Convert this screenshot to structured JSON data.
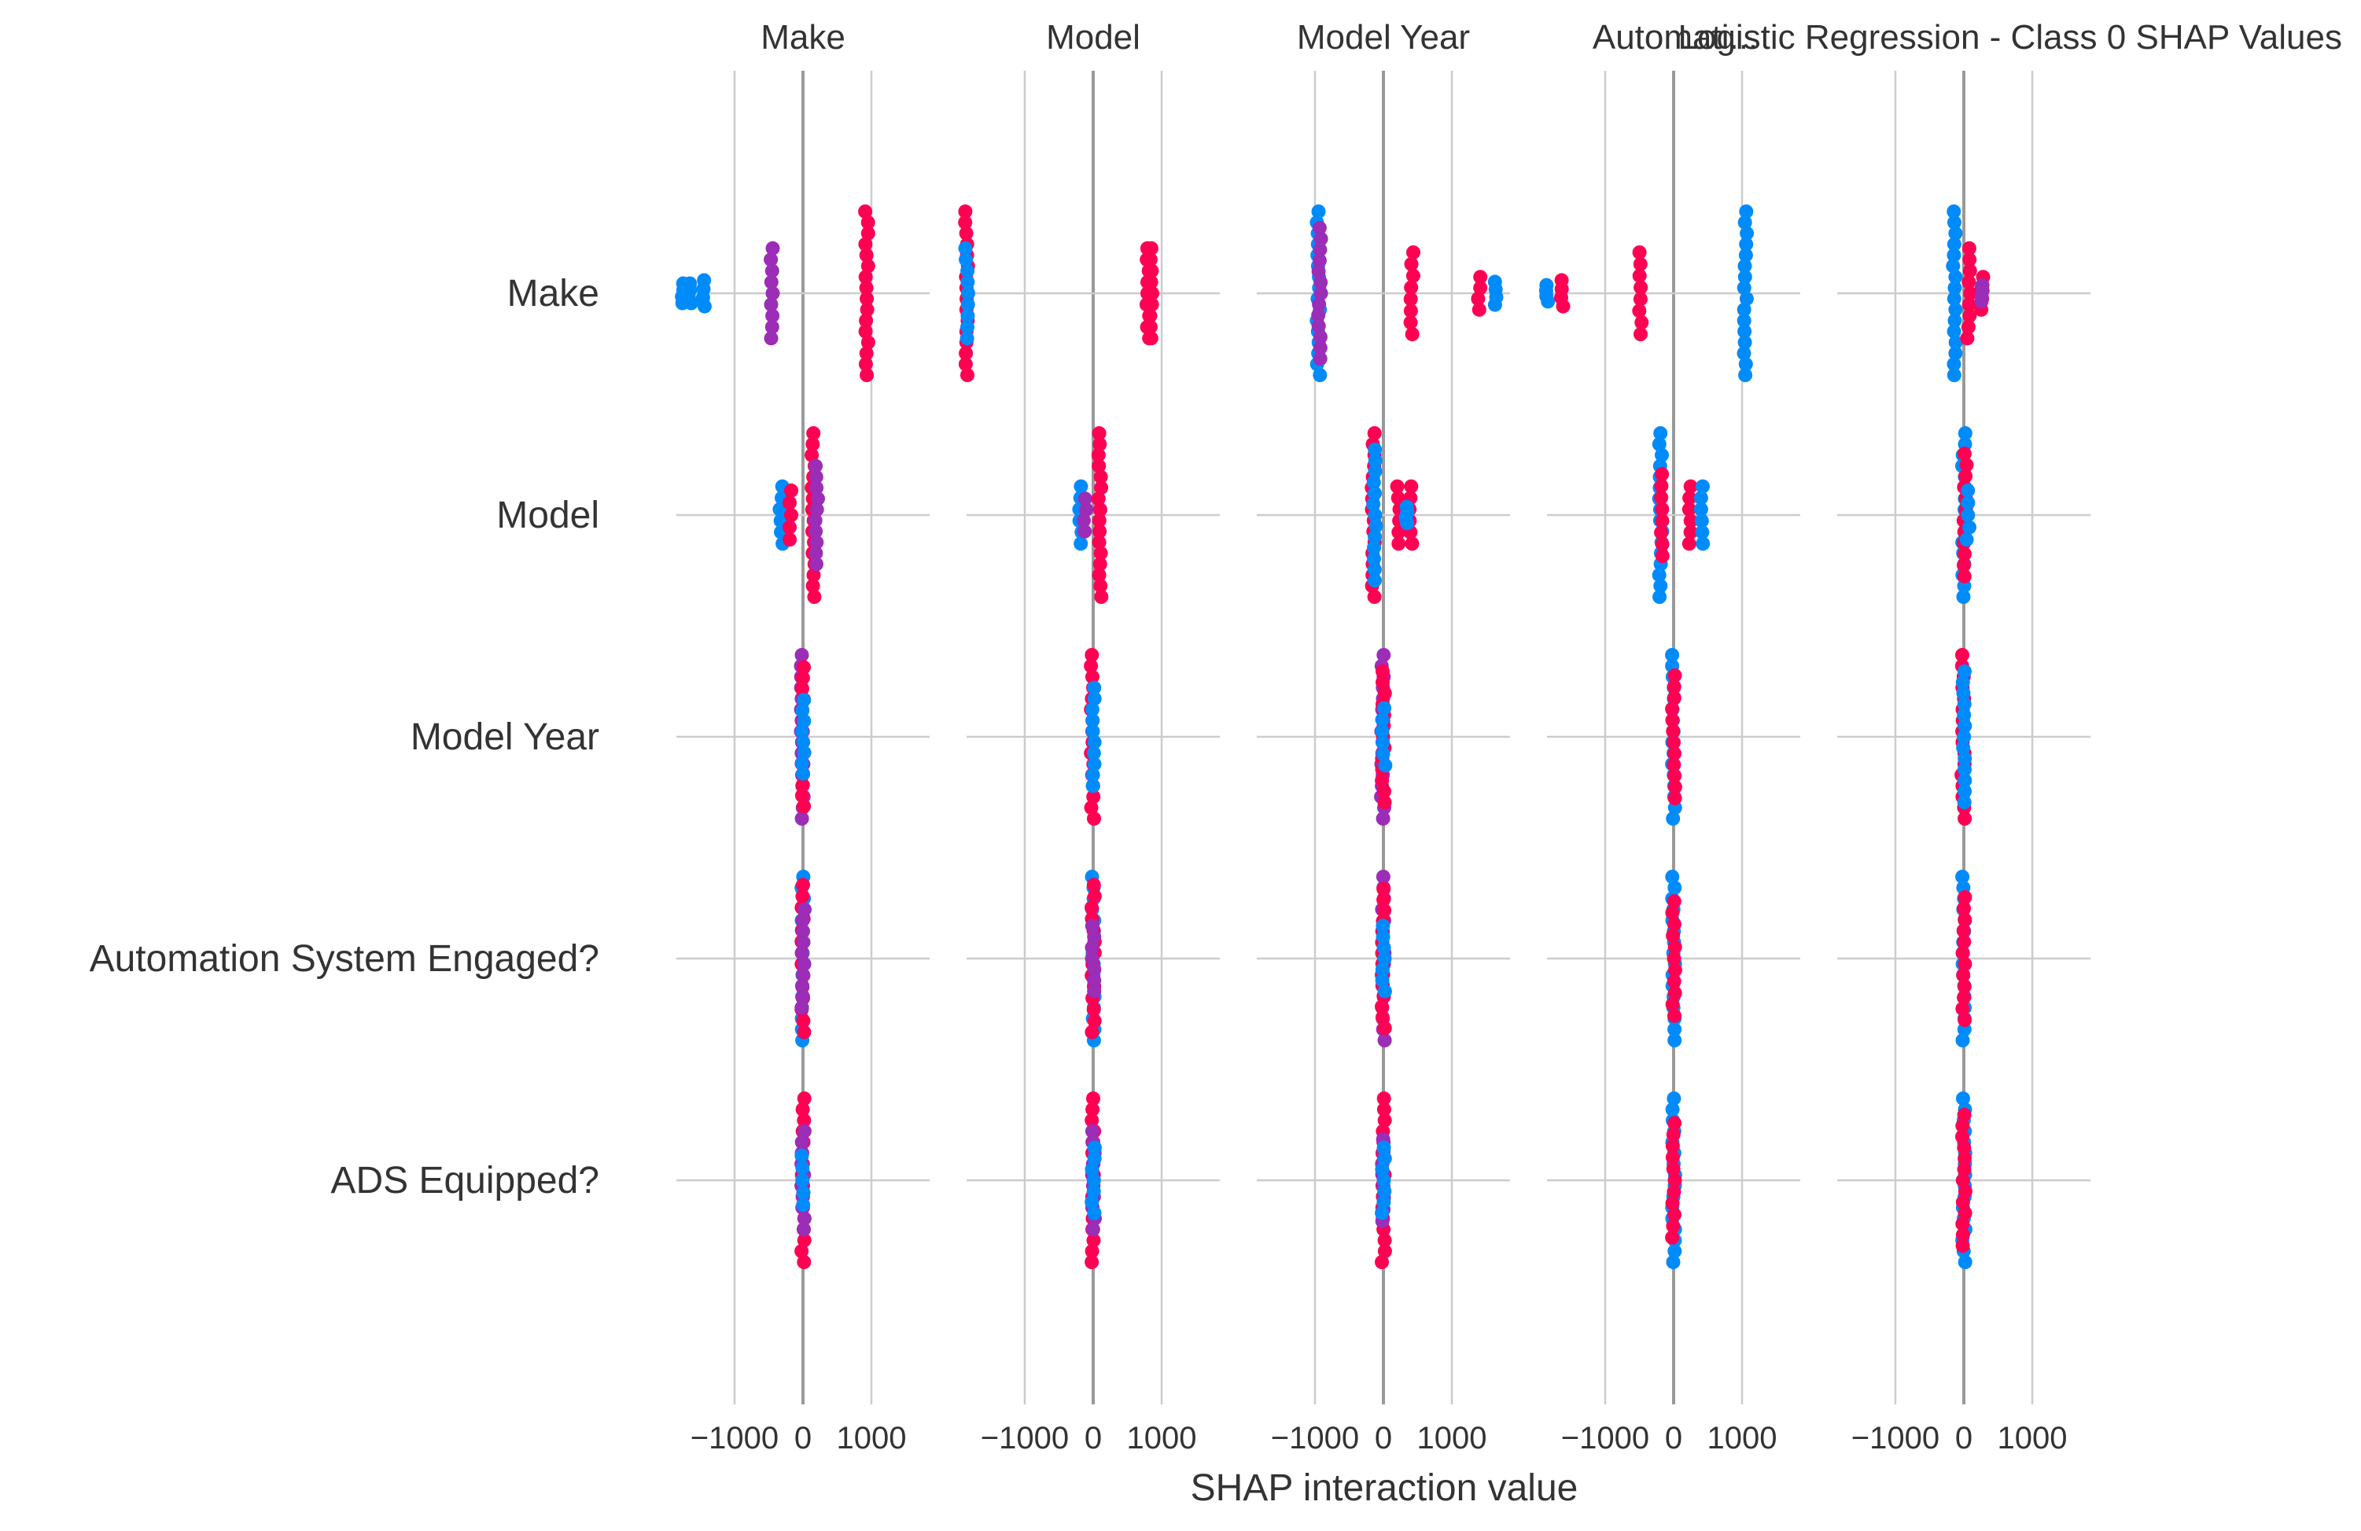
{
  "figure": {
    "suptitle": "Logistic Regression - Class 0 SHAP Values",
    "overlap_title": "Automati...",
    "xlabel": "SHAP interaction value"
  },
  "colors": {
    "blue": "#008bfb",
    "pink": "#ff0052",
    "purple": "#9b2db7",
    "grid": "#cccccc",
    "zero_line": "#999999",
    "text": "#333333"
  },
  "chart_data": {
    "type": "scatter",
    "subtype": "shap-interaction-summary",
    "columns": [
      "Make",
      "Model",
      "Model Year",
      "",
      ""
    ],
    "features": [
      "Make",
      "Model",
      "Model Year",
      "Automation System Engaged?",
      "ADS Equipped?"
    ],
    "xticks": [
      -1000,
      0,
      1000
    ],
    "xlim": [
      -1850,
      1850
    ],
    "grid": true,
    "cells": [
      [
        {
          "clusters": [
            {
              "x": -1750,
              "color": "blue",
              "spread": 0.12
            },
            {
              "x": -1650,
              "color": "blue",
              "spread": 0.12
            },
            {
              "x": -1450,
              "color": "blue",
              "spread": 0.16
            },
            {
              "x": -450,
              "color": "purple",
              "spread": 0.55
            },
            {
              "x": 930,
              "color": "pink",
              "spread": 1.0
            }
          ]
        },
        {
          "clusters": [
            {
              "x": 800,
              "color": "pink",
              "spread": 0.55
            },
            {
              "x": 850,
              "color": "pink",
              "spread": 0.55
            },
            {
              "x": -1850,
              "color": "pink",
              "spread": 1.0
            },
            {
              "x": -1850,
              "color": "blue",
              "spread": 0.55
            }
          ]
        },
        {
          "clusters": [
            {
              "x": -950,
              "color": "blue",
              "spread": 1.0
            },
            {
              "x": -930,
              "color": "purple",
              "spread": 0.8
            },
            {
              "x": 420,
              "color": "pink",
              "spread": 0.5
            },
            {
              "x": 1400,
              "color": "pink",
              "spread": 0.2
            },
            {
              "x": 1650,
              "color": "blue",
              "spread": 0.14
            }
          ]
        },
        {
          "clusters": [
            {
              "x": -1850,
              "color": "blue",
              "spread": 0.1
            },
            {
              "x": -1620,
              "color": "pink",
              "spread": 0.16
            },
            {
              "x": -480,
              "color": "pink",
              "spread": 0.5
            },
            {
              "x": 1050,
              "color": "blue",
              "spread": 1.0
            }
          ]
        },
        {
          "clusters": [
            {
              "x": -140,
              "color": "blue",
              "spread": 1.0
            },
            {
              "x": 70,
              "color": "pink",
              "spread": 0.55
            },
            {
              "x": 260,
              "color": "pink",
              "spread": 0.2
            },
            {
              "x": 260,
              "color": "purple",
              "spread": 0.1
            }
          ]
        }
      ],
      [
        {
          "clusters": [
            {
              "x": -320,
              "color": "blue",
              "spread": 0.35
            },
            {
              "x": -180,
              "color": "pink",
              "spread": 0.3
            },
            {
              "x": 150,
              "color": "pink",
              "spread": 1.0
            },
            {
              "x": 200,
              "color": "purple",
              "spread": 0.6
            }
          ]
        },
        {
          "clusters": [
            {
              "x": -180,
              "color": "blue",
              "spread": 0.35
            },
            {
              "x": -120,
              "color": "purple",
              "spread": 0.2
            },
            {
              "x": 100,
              "color": "pink",
              "spread": 1.0
            }
          ]
        },
        {
          "clusters": [
            {
              "x": -150,
              "color": "pink",
              "spread": 1.0
            },
            {
              "x": -130,
              "color": "blue",
              "spread": 0.8
            },
            {
              "x": 220,
              "color": "pink",
              "spread": 0.35
            },
            {
              "x": 400,
              "color": "pink",
              "spread": 0.35
            },
            {
              "x": 330,
              "color": "blue",
              "spread": 0.1
            }
          ]
        },
        {
          "clusters": [
            {
              "x": -190,
              "color": "blue",
              "spread": 1.0
            },
            {
              "x": -170,
              "color": "pink",
              "spread": 0.5
            },
            {
              "x": 250,
              "color": "pink",
              "spread": 0.35
            },
            {
              "x": 420,
              "color": "blue",
              "spread": 0.35
            }
          ]
        },
        {
          "clusters": [
            {
              "x": 0,
              "color": "blue",
              "spread": 1.0
            },
            {
              "x": 20,
              "color": "pink",
              "spread": 0.75
            },
            {
              "x": 60,
              "color": "blue",
              "spread": 0.3
            }
          ]
        }
      ],
      [
        {
          "clusters": [
            {
              "x": -10,
              "color": "purple",
              "spread": 1.0
            },
            {
              "x": 0,
              "color": "pink",
              "spread": 0.85
            },
            {
              "x": 5,
              "color": "blue",
              "spread": 0.45
            }
          ]
        },
        {
          "clusters": [
            {
              "x": -10,
              "color": "pink",
              "spread": 1.0
            },
            {
              "x": 0,
              "color": "blue",
              "spread": 0.6
            }
          ]
        },
        {
          "clusters": [
            {
              "x": -10,
              "color": "purple",
              "spread": 1.0
            },
            {
              "x": 0,
              "color": "pink",
              "spread": 0.8
            },
            {
              "x": 5,
              "color": "blue",
              "spread": 0.35
            }
          ]
        },
        {
          "clusters": [
            {
              "x": 0,
              "color": "blue",
              "spread": 1.0
            },
            {
              "x": 0,
              "color": "pink",
              "spread": 0.75
            }
          ]
        },
        {
          "clusters": [
            {
              "x": -10,
              "color": "pink",
              "spread": 1.0
            },
            {
              "x": 0,
              "color": "blue",
              "spread": 0.8
            }
          ]
        }
      ],
      [
        {
          "clusters": [
            {
              "x": 0,
              "color": "blue",
              "spread": 1.0
            },
            {
              "x": 0,
              "color": "pink",
              "spread": 0.9
            },
            {
              "x": 0,
              "color": "purple",
              "spread": 0.6
            }
          ]
        },
        {
          "clusters": [
            {
              "x": 0,
              "color": "blue",
              "spread": 1.0
            },
            {
              "x": 0,
              "color": "pink",
              "spread": 0.9
            },
            {
              "x": 0,
              "color": "purple",
              "spread": 0.4
            }
          ]
        },
        {
          "clusters": [
            {
              "x": 0,
              "color": "purple",
              "spread": 1.0
            },
            {
              "x": 0,
              "color": "pink",
              "spread": 0.85
            },
            {
              "x": 0,
              "color": "blue",
              "spread": 0.4
            }
          ]
        },
        {
          "clusters": [
            {
              "x": 0,
              "color": "blue",
              "spread": 1.0
            },
            {
              "x": 0,
              "color": "pink",
              "spread": 0.7
            }
          ]
        },
        {
          "clusters": [
            {
              "x": 0,
              "color": "blue",
              "spread": 1.0
            },
            {
              "x": 0,
              "color": "pink",
              "spread": 0.75
            }
          ]
        }
      ],
      [
        {
          "clusters": [
            {
              "x": 0,
              "color": "pink",
              "spread": 1.0
            },
            {
              "x": 0,
              "color": "purple",
              "spread": 0.6
            },
            {
              "x": 0,
              "color": "blue",
              "spread": 0.3
            }
          ]
        },
        {
          "clusters": [
            {
              "x": 0,
              "color": "pink",
              "spread": 1.0
            },
            {
              "x": 0,
              "color": "purple",
              "spread": 0.6
            },
            {
              "x": 0,
              "color": "blue",
              "spread": 0.4
            }
          ]
        },
        {
          "clusters": [
            {
              "x": 0,
              "color": "pink",
              "spread": 1.0
            },
            {
              "x": 0,
              "color": "purple",
              "spread": 0.5
            },
            {
              "x": 0,
              "color": "blue",
              "spread": 0.4
            }
          ]
        },
        {
          "clusters": [
            {
              "x": 0,
              "color": "blue",
              "spread": 1.0
            },
            {
              "x": 0,
              "color": "pink",
              "spread": 0.7
            }
          ]
        },
        {
          "clusters": [
            {
              "x": 0,
              "color": "blue",
              "spread": 1.0
            },
            {
              "x": 0,
              "color": "pink",
              "spread": 0.8
            }
          ]
        }
      ]
    ]
  }
}
